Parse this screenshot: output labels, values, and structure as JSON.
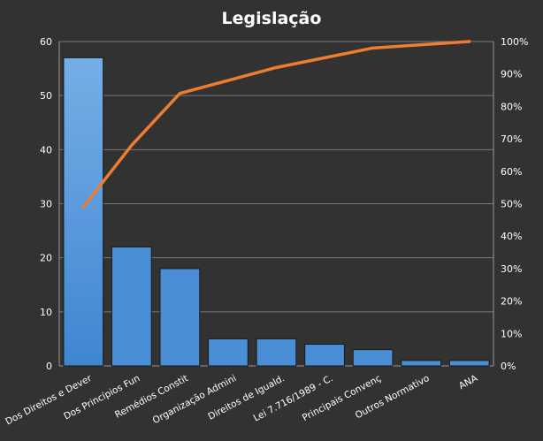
{
  "chart_data": {
    "type": "bar",
    "title": "Legislação",
    "categories": [
      "Dos Direitos e Dever",
      "Dos Princípios Fun",
      "Remédios Constit",
      "Organização Admini",
      "Direitos de Iguald.",
      "Lei 7.716/1989 - C.",
      "Principais Convenç",
      "Outros Normativo",
      "ANA"
    ],
    "series": [
      {
        "type": "bar",
        "values": [
          57,
          22,
          18,
          5,
          5,
          4,
          3,
          1,
          1
        ],
        "color": "#4a8fd6"
      },
      {
        "type": "line",
        "axis": "right",
        "values": [
          49,
          68,
          84,
          88,
          92,
          95,
          98,
          99,
          100
        ],
        "color": "#ed7d31"
      }
    ],
    "ylim": [
      0,
      60
    ],
    "yticks": [
      "0",
      "10",
      "20",
      "30",
      "40",
      "50",
      "60"
    ],
    "y2lim": [
      0,
      100
    ],
    "y2ticks": [
      "0%",
      "10%",
      "20%",
      "30%",
      "40%",
      "50%",
      "60%",
      "70%",
      "80%",
      "90%",
      "100%"
    ],
    "grid": true,
    "legend": "none",
    "colors": {
      "background": "#323232",
      "gridline": "#7a7a7a",
      "bar": "#4a8fd6",
      "line": "#ed7d31",
      "text": "#ffffff"
    }
  }
}
